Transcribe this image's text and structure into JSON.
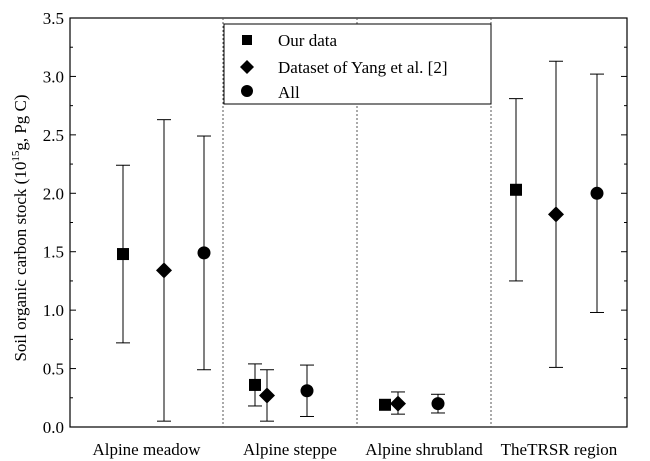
{
  "chart_data": {
    "type": "scatter",
    "ylabel_main": "Soil organic carbon stock (10",
    "ylabel_sup": "15",
    "ylabel_tail": "g, Pg C)",
    "ylim": [
      0,
      3.5
    ],
    "y_ticks": [
      "0.0",
      "0.5",
      "1.0",
      "1.5",
      "2.0",
      "2.5",
      "3.0",
      "3.5"
    ],
    "categories": [
      "Alpine meadow",
      "Alpine steppe",
      "Alpine shrubland",
      "TheTRSR region"
    ],
    "legend_position": "top-center",
    "series": [
      {
        "name": "Our data",
        "marker": "square",
        "values": [
          1.48,
          0.36,
          0.19,
          2.03
        ],
        "error_low": [
          0.72,
          0.18,
          null,
          1.25
        ],
        "error_high": [
          2.24,
          0.54,
          null,
          2.81
        ]
      },
      {
        "name": "Dataset of Yang et al. [2]",
        "marker": "diamond",
        "values": [
          1.34,
          0.27,
          0.2,
          1.82
        ],
        "error_low": [
          0.05,
          0.05,
          0.11,
          0.51
        ],
        "error_high": [
          2.63,
          0.49,
          0.3,
          3.13
        ]
      },
      {
        "name": "All",
        "marker": "circle",
        "values": [
          1.49,
          0.31,
          0.2,
          2.0
        ],
        "error_low": [
          0.49,
          0.09,
          0.12,
          0.98
        ],
        "error_high": [
          2.49,
          0.53,
          0.28,
          3.02
        ]
      }
    ]
  }
}
